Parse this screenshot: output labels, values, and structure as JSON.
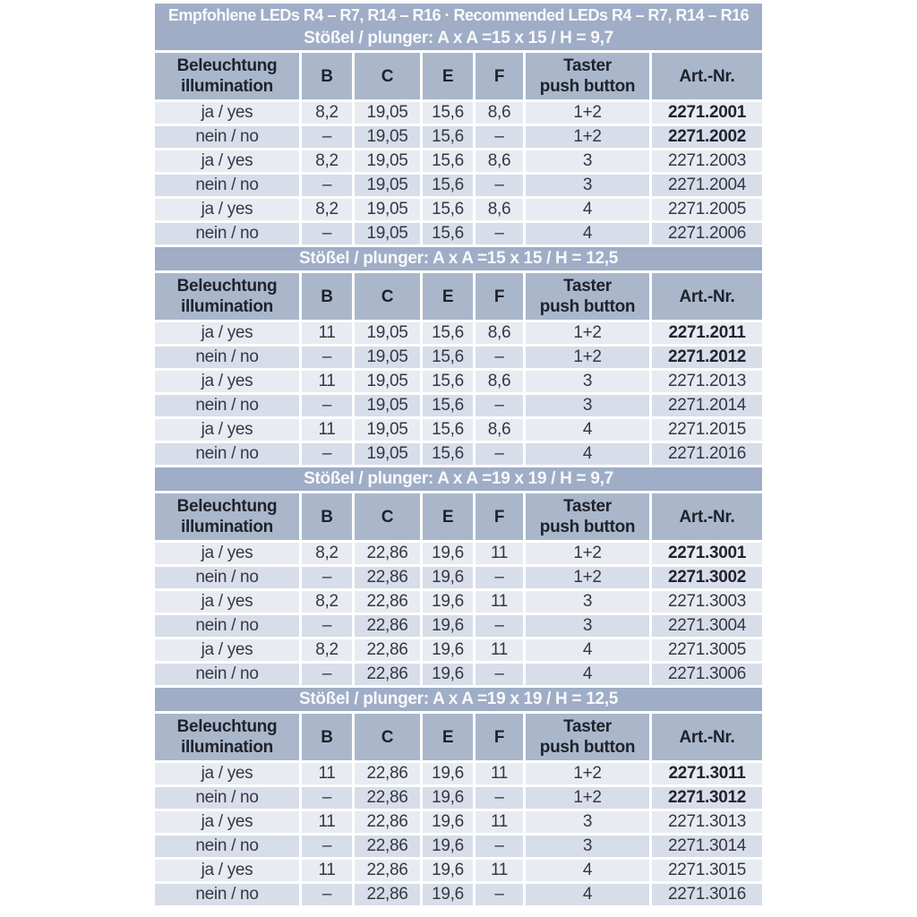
{
  "colors": {
    "title_bar_bg": "#9fadc6",
    "column_header_bg": "#aab7cb",
    "row_light_bg": "#e8ebf1",
    "row_dark_bg": "#d7dde9",
    "title_text": "#f8f9fc",
    "header_text": "#1e222c",
    "cell_text": "#363841",
    "page_bg": "#ffffff"
  },
  "table": {
    "main_title": "Empfohlene LEDs R4 – R7, R14 – R16 · Recommended LEDs R4 – R7, R14 – R16",
    "columns": [
      {
        "lines": [
          "Beleuchtung",
          "illumination"
        ]
      },
      {
        "lines": [
          "B"
        ]
      },
      {
        "lines": [
          "C"
        ]
      },
      {
        "lines": [
          "E"
        ]
      },
      {
        "lines": [
          "F"
        ]
      },
      {
        "lines": [
          "Taster",
          "push button"
        ]
      },
      {
        "lines": [
          "Art.-Nr."
        ]
      }
    ],
    "sections": [
      {
        "subtitle": "Stößel / plunger: A x A =15 x 15 / H = 9,7",
        "bold_art_rows": [
          0,
          1
        ],
        "rows": [
          [
            "ja / yes",
            "8,2",
            "19,05",
            "15,6",
            "8,6",
            "1+2",
            "2271.2001"
          ],
          [
            "nein / no",
            "–",
            "19,05",
            "15,6",
            "–",
            "1+2",
            "2271.2002"
          ],
          [
            "ja / yes",
            "8,2",
            "19,05",
            "15,6",
            "8,6",
            "3",
            "2271.2003"
          ],
          [
            "nein / no",
            "–",
            "19,05",
            "15,6",
            "–",
            "3",
            "2271.2004"
          ],
          [
            "ja / yes",
            "8,2",
            "19,05",
            "15,6",
            "8,6",
            "4",
            "2271.2005"
          ],
          [
            "nein / no",
            "–",
            "19,05",
            "15,6",
            "–",
            "4",
            "2271.2006"
          ]
        ]
      },
      {
        "subtitle": "Stößel / plunger: A x A =15 x 15 / H = 12,5",
        "bold_art_rows": [
          0,
          1
        ],
        "rows": [
          [
            "ja / yes",
            "11",
            "19,05",
            "15,6",
            "8,6",
            "1+2",
            "2271.2011"
          ],
          [
            "nein / no",
            "–",
            "19,05",
            "15,6",
            "–",
            "1+2",
            "2271.2012"
          ],
          [
            "ja / yes",
            "11",
            "19,05",
            "15,6",
            "8,6",
            "3",
            "2271.2013"
          ],
          [
            "nein / no",
            "–",
            "19,05",
            "15,6",
            "–",
            "3",
            "2271.2014"
          ],
          [
            "ja / yes",
            "11",
            "19,05",
            "15,6",
            "8,6",
            "4",
            "2271.2015"
          ],
          [
            "nein / no",
            "–",
            "19,05",
            "15,6",
            "–",
            "4",
            "2271.2016"
          ]
        ]
      },
      {
        "subtitle": "Stößel / plunger: A x A =19 x 19 / H = 9,7",
        "bold_art_rows": [
          0,
          1
        ],
        "rows": [
          [
            "ja / yes",
            "8,2",
            "22,86",
            "19,6",
            "11",
            "1+2",
            "2271.3001"
          ],
          [
            "nein / no",
            "–",
            "22,86",
            "19,6",
            "–",
            "1+2",
            "2271.3002"
          ],
          [
            "ja / yes",
            "8,2",
            "22,86",
            "19,6",
            "11",
            "3",
            "2271.3003"
          ],
          [
            "nein / no",
            "–",
            "22,86",
            "19,6",
            "–",
            "3",
            "2271.3004"
          ],
          [
            "ja / yes",
            "8,2",
            "22,86",
            "19,6",
            "11",
            "4",
            "2271.3005"
          ],
          [
            "nein / no",
            "–",
            "22,86",
            "19,6",
            "–",
            "4",
            "2271.3006"
          ]
        ]
      },
      {
        "subtitle": "Stößel / plunger: A x A =19 x 19 / H = 12,5",
        "bold_art_rows": [
          0,
          1
        ],
        "rows": [
          [
            "ja / yes",
            "11",
            "22,86",
            "19,6",
            "11",
            "1+2",
            "2271.3011"
          ],
          [
            "nein / no",
            "–",
            "22,86",
            "19,6",
            "–",
            "1+2",
            "2271.3012"
          ],
          [
            "ja / yes",
            "11",
            "22,86",
            "19,6",
            "11",
            "3",
            "2271.3013"
          ],
          [
            "nein / no",
            "–",
            "22,86",
            "19,6",
            "–",
            "3",
            "2271.3014"
          ],
          [
            "ja / yes",
            "11",
            "22,86",
            "19,6",
            "11",
            "4",
            "2271.3015"
          ],
          [
            "nein / no",
            "–",
            "22,86",
            "19,6",
            "–",
            "4",
            "2271.3016"
          ]
        ]
      }
    ]
  }
}
